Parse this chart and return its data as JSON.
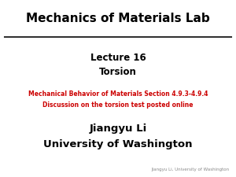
{
  "title": "Mechanics of Materials Lab",
  "lecture_line1": "Lecture 16",
  "lecture_line2": "Torsion",
  "red_line1": "Mechanical Behavior of Materials Section 4.9.3-4.9.4",
  "red_line2": "Discussion on the torsion test posted online",
  "author_line1": "Jiangyu Li",
  "author_line2": "University of Washington",
  "footer": "Jiangyu Li, University of Washington",
  "bg_color": "#ffffff",
  "title_color": "#000000",
  "red_color": "#cc0000",
  "black_color": "#000000",
  "gray_color": "#888888",
  "title_fontsize": 11,
  "lecture_fontsize": 8.5,
  "red_fontsize": 5.5,
  "author_fontsize": 9.5,
  "footer_fontsize": 4
}
